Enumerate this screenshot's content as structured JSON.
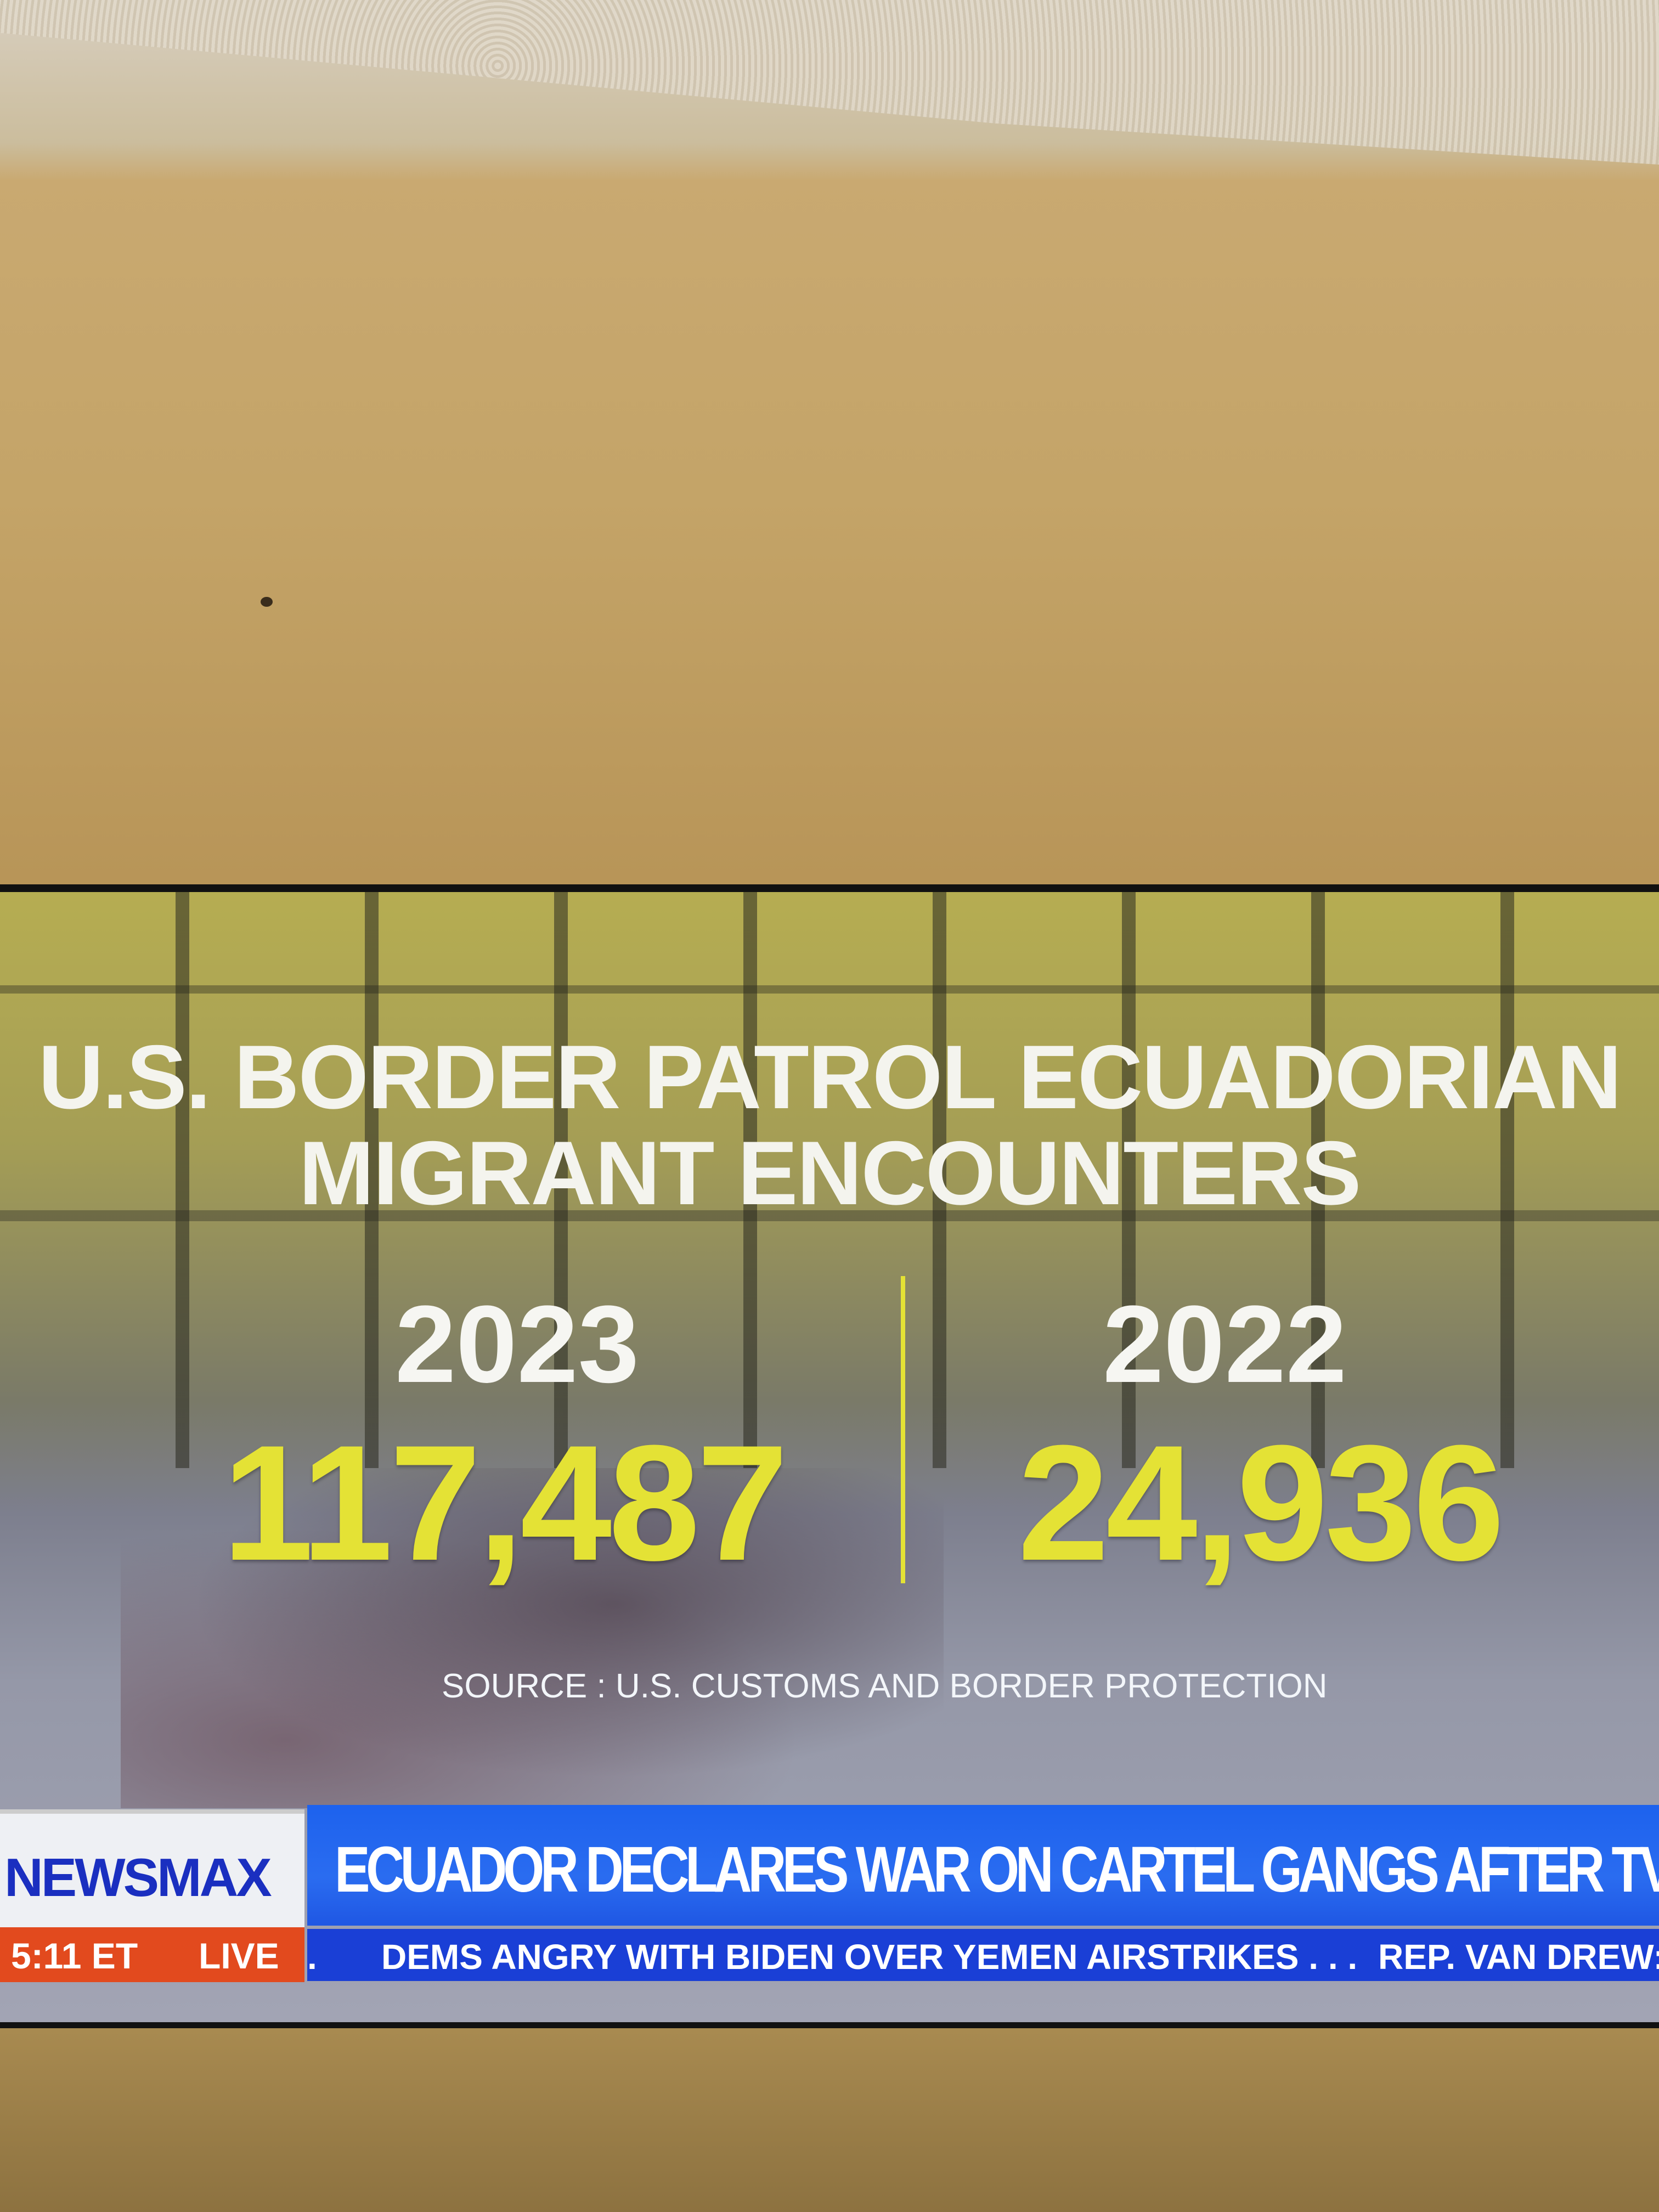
{
  "graphic": {
    "title_line1": "U.S. BORDER PATROL ECUADORIAN",
    "title_line2": "MIGRANT ENCOUNTERS",
    "left": {
      "year": "2023",
      "value": "117,487"
    },
    "right": {
      "year": "2022",
      "value": "24,936"
    },
    "source": "SOURCE : U.S. CUSTOMS AND BORDER PROTECTION",
    "colors": {
      "numbers": "#e4e235",
      "text": "#ffffff"
    }
  },
  "lower_third": {
    "logo": "NEWSMAX",
    "time": "5:11 ET",
    "live": "LIVE",
    "headline": "ECUADOR DECLARES WAR ON CARTEL GANGS AFTER TV STATION ATTACKED ON A",
    "ticker": [
      ".",
      "DEMS ANGRY WITH BIDEN OVER YEMEN AIRSTRIKES . . .",
      "REP. VAN DREW:"
    ],
    "colors": {
      "headline_bg": "#1f5ee8",
      "ticker_bg": "#1a3fd6",
      "live_bg": "#e24a1e",
      "logo": "#1a2fc0"
    }
  }
}
